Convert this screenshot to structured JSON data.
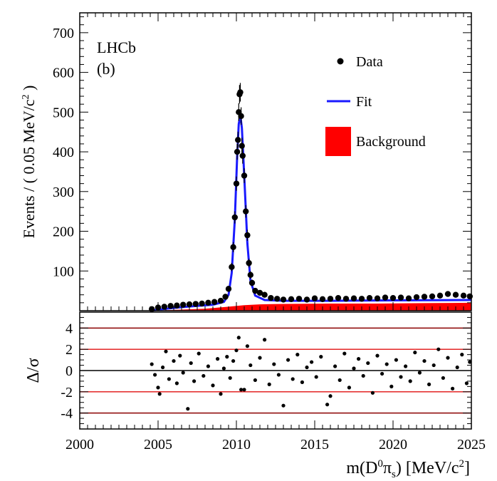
{
  "chart_data": {
    "type": "scatter",
    "experiment_label": "LHCb",
    "panel_label": "(b)",
    "xlabel": {
      "prefix": "m(D",
      "sup": "0",
      "mid": "π",
      "sub": "s",
      "suffix": ") [MeV/c",
      "unit_sup": "2",
      "close": "]"
    },
    "ylabel_top": {
      "text": "Events / ( 0.05 MeV/c",
      "sup": "2",
      "close": " )"
    },
    "ylabel_bottom": "Δ/σ",
    "xlim": [
      2000,
      2025
    ],
    "xticks": [
      2000,
      2005,
      2010,
      2015,
      2020,
      2025
    ],
    "ylim_top": [
      0,
      750
    ],
    "yticks_top": [
      100,
      200,
      300,
      400,
      500,
      600,
      700
    ],
    "ylim_bottom": [
      -5.5,
      5.5
    ],
    "yticks_bottom": [
      -4,
      -2,
      0,
      2,
      4
    ],
    "pull_reference_lines": [
      -4,
      -2,
      2,
      4
    ],
    "legend": [
      {
        "label": "Data",
        "kind": "marker",
        "color": "#000000"
      },
      {
        "label": "Fit",
        "kind": "line",
        "color": "#1a1aff"
      },
      {
        "label": "Background",
        "kind": "fill",
        "color": "#ff0000"
      }
    ],
    "signal_peak": {
      "mean": 2010.25,
      "peak_height": 550
    },
    "data": [
      {
        "x": 2004.6,
        "y": 4
      },
      {
        "x": 2005.0,
        "y": 8
      },
      {
        "x": 2005.4,
        "y": 10
      },
      {
        "x": 2005.8,
        "y": 12
      },
      {
        "x": 2006.2,
        "y": 13
      },
      {
        "x": 2006.6,
        "y": 15
      },
      {
        "x": 2007.0,
        "y": 16
      },
      {
        "x": 2007.4,
        "y": 17
      },
      {
        "x": 2007.8,
        "y": 18
      },
      {
        "x": 2008.2,
        "y": 20
      },
      {
        "x": 2008.6,
        "y": 22
      },
      {
        "x": 2009.0,
        "y": 25
      },
      {
        "x": 2009.3,
        "y": 35
      },
      {
        "x": 2009.5,
        "y": 55
      },
      {
        "x": 2009.7,
        "y": 110
      },
      {
        "x": 2009.8,
        "y": 160
      },
      {
        "x": 2009.9,
        "y": 235
      },
      {
        "x": 2010.0,
        "y": 320
      },
      {
        "x": 2010.05,
        "y": 400
      },
      {
        "x": 2010.1,
        "y": 430
      },
      {
        "x": 2010.15,
        "y": 500
      },
      {
        "x": 2010.2,
        "y": 545
      },
      {
        "x": 2010.25,
        "y": 550
      },
      {
        "x": 2010.3,
        "y": 490
      },
      {
        "x": 2010.35,
        "y": 415
      },
      {
        "x": 2010.4,
        "y": 390
      },
      {
        "x": 2010.5,
        "y": 340
      },
      {
        "x": 2010.6,
        "y": 250
      },
      {
        "x": 2010.7,
        "y": 190
      },
      {
        "x": 2010.8,
        "y": 120
      },
      {
        "x": 2010.9,
        "y": 90
      },
      {
        "x": 2011.0,
        "y": 70
      },
      {
        "x": 2011.2,
        "y": 50
      },
      {
        "x": 2011.5,
        "y": 45
      },
      {
        "x": 2011.8,
        "y": 40
      },
      {
        "x": 2012.2,
        "y": 32
      },
      {
        "x": 2012.6,
        "y": 30
      },
      {
        "x": 2013.0,
        "y": 28
      },
      {
        "x": 2013.5,
        "y": 29
      },
      {
        "x": 2014.0,
        "y": 30
      },
      {
        "x": 2014.5,
        "y": 28
      },
      {
        "x": 2015.0,
        "y": 31
      },
      {
        "x": 2015.5,
        "y": 29
      },
      {
        "x": 2016.0,
        "y": 30
      },
      {
        "x": 2016.5,
        "y": 32
      },
      {
        "x": 2017.0,
        "y": 30
      },
      {
        "x": 2017.5,
        "y": 31
      },
      {
        "x": 2018.0,
        "y": 30
      },
      {
        "x": 2018.5,
        "y": 32
      },
      {
        "x": 2019.0,
        "y": 31
      },
      {
        "x": 2019.5,
        "y": 33
      },
      {
        "x": 2020.0,
        "y": 32
      },
      {
        "x": 2020.5,
        "y": 33
      },
      {
        "x": 2021.0,
        "y": 31
      },
      {
        "x": 2021.5,
        "y": 34
      },
      {
        "x": 2022.0,
        "y": 35
      },
      {
        "x": 2022.5,
        "y": 36
      },
      {
        "x": 2023.0,
        "y": 38
      },
      {
        "x": 2023.5,
        "y": 42
      },
      {
        "x": 2024.0,
        "y": 40
      },
      {
        "x": 2024.5,
        "y": 38
      },
      {
        "x": 2024.9,
        "y": 36
      }
    ],
    "fit": [
      {
        "x": 2004.5,
        "y": 0
      },
      {
        "x": 2005.5,
        "y": 5
      },
      {
        "x": 2006.5,
        "y": 9
      },
      {
        "x": 2007.5,
        "y": 12
      },
      {
        "x": 2008.5,
        "y": 15
      },
      {
        "x": 2009.2,
        "y": 22
      },
      {
        "x": 2009.5,
        "y": 40
      },
      {
        "x": 2009.7,
        "y": 95
      },
      {
        "x": 2009.9,
        "y": 230
      },
      {
        "x": 2010.05,
        "y": 390
      },
      {
        "x": 2010.15,
        "y": 470
      },
      {
        "x": 2010.25,
        "y": 492
      },
      {
        "x": 2010.35,
        "y": 460
      },
      {
        "x": 2010.5,
        "y": 340
      },
      {
        "x": 2010.7,
        "y": 170
      },
      {
        "x": 2010.9,
        "y": 75
      },
      {
        "x": 2011.2,
        "y": 38
      },
      {
        "x": 2011.8,
        "y": 27
      },
      {
        "x": 2013.0,
        "y": 25
      },
      {
        "x": 2016.0,
        "y": 25
      },
      {
        "x": 2020.0,
        "y": 26
      },
      {
        "x": 2025.0,
        "y": 27
      }
    ],
    "background": [
      {
        "x": 2004.5,
        "y": 0
      },
      {
        "x": 2006.0,
        "y": 2
      },
      {
        "x": 2008.0,
        "y": 5
      },
      {
        "x": 2009.5,
        "y": 10
      },
      {
        "x": 2010.5,
        "y": 14
      },
      {
        "x": 2011.5,
        "y": 16
      },
      {
        "x": 2013.0,
        "y": 17
      },
      {
        "x": 2016.0,
        "y": 18
      },
      {
        "x": 2019.0,
        "y": 18
      },
      {
        "x": 2022.0,
        "y": 19
      },
      {
        "x": 2025.0,
        "y": 20
      }
    ],
    "pulls": [
      {
        "x": 2004.6,
        "y": 0.6
      },
      {
        "x": 2004.8,
        "y": -0.4
      },
      {
        "x": 2005.0,
        "y": -1.6
      },
      {
        "x": 2005.1,
        "y": -2.2
      },
      {
        "x": 2005.3,
        "y": 0.3
      },
      {
        "x": 2005.5,
        "y": 1.8
      },
      {
        "x": 2005.7,
        "y": -0.8
      },
      {
        "x": 2006.0,
        "y": 0.9
      },
      {
        "x": 2006.2,
        "y": -1.2
      },
      {
        "x": 2006.4,
        "y": 1.4
      },
      {
        "x": 2006.6,
        "y": -0.2
      },
      {
        "x": 2006.9,
        "y": -3.6
      },
      {
        "x": 2007.1,
        "y": 0.7
      },
      {
        "x": 2007.3,
        "y": -1.0
      },
      {
        "x": 2007.6,
        "y": 1.6
      },
      {
        "x": 2007.9,
        "y": -0.5
      },
      {
        "x": 2008.2,
        "y": 0.4
      },
      {
        "x": 2008.5,
        "y": -1.4
      },
      {
        "x": 2008.8,
        "y": 1.1
      },
      {
        "x": 2009.0,
        "y": -2.2
      },
      {
        "x": 2009.2,
        "y": 0.2
      },
      {
        "x": 2009.4,
        "y": 1.3
      },
      {
        "x": 2009.6,
        "y": -0.7
      },
      {
        "x": 2009.8,
        "y": 0.9
      },
      {
        "x": 2010.0,
        "y": 1.9
      },
      {
        "x": 2010.15,
        "y": 3.1
      },
      {
        "x": 2010.3,
        "y": -1.8
      },
      {
        "x": 2010.5,
        "y": -1.8
      },
      {
        "x": 2010.7,
        "y": 2.3
      },
      {
        "x": 2010.9,
        "y": 0.5
      },
      {
        "x": 2011.2,
        "y": -0.9
      },
      {
        "x": 2011.5,
        "y": 1.2
      },
      {
        "x": 2011.8,
        "y": 2.9
      },
      {
        "x": 2012.1,
        "y": -1.3
      },
      {
        "x": 2012.4,
        "y": 0.6
      },
      {
        "x": 2012.7,
        "y": -0.4
      },
      {
        "x": 2013.0,
        "y": -3.3
      },
      {
        "x": 2013.3,
        "y": 1.0
      },
      {
        "x": 2013.6,
        "y": -0.8
      },
      {
        "x": 2013.9,
        "y": 1.5
      },
      {
        "x": 2014.2,
        "y": -1.1
      },
      {
        "x": 2014.5,
        "y": 0.3
      },
      {
        "x": 2014.8,
        "y": 0.8
      },
      {
        "x": 2015.1,
        "y": -0.6
      },
      {
        "x": 2015.4,
        "y": 1.3
      },
      {
        "x": 2015.8,
        "y": -3.2
      },
      {
        "x": 2016.0,
        "y": -2.4
      },
      {
        "x": 2016.3,
        "y": 0.4
      },
      {
        "x": 2016.6,
        "y": -0.9
      },
      {
        "x": 2016.9,
        "y": 1.6
      },
      {
        "x": 2017.2,
        "y": -1.6
      },
      {
        "x": 2017.5,
        "y": 0.2
      },
      {
        "x": 2017.8,
        "y": 1.1
      },
      {
        "x": 2018.1,
        "y": -0.5
      },
      {
        "x": 2018.4,
        "y": 0.7
      },
      {
        "x": 2018.7,
        "y": -2.1
      },
      {
        "x": 2019.0,
        "y": 1.4
      },
      {
        "x": 2019.3,
        "y": -0.3
      },
      {
        "x": 2019.6,
        "y": 0.6
      },
      {
        "x": 2019.9,
        "y": -1.5
      },
      {
        "x": 2020.2,
        "y": 1.0
      },
      {
        "x": 2020.5,
        "y": -0.6
      },
      {
        "x": 2020.8,
        "y": 0.4
      },
      {
        "x": 2021.1,
        "y": -1.0
      },
      {
        "x": 2021.4,
        "y": 1.7
      },
      {
        "x": 2021.7,
        "y": -0.2
      },
      {
        "x": 2022.0,
        "y": 0.9
      },
      {
        "x": 2022.3,
        "y": -1.3
      },
      {
        "x": 2022.6,
        "y": 0.5
      },
      {
        "x": 2022.9,
        "y": 2.0
      },
      {
        "x": 2023.2,
        "y": -0.7
      },
      {
        "x": 2023.5,
        "y": 1.2
      },
      {
        "x": 2023.8,
        "y": -1.7
      },
      {
        "x": 2024.1,
        "y": 0.3
      },
      {
        "x": 2024.4,
        "y": 1.5
      },
      {
        "x": 2024.7,
        "y": -1.2
      },
      {
        "x": 2024.9,
        "y": 0.8
      }
    ]
  }
}
